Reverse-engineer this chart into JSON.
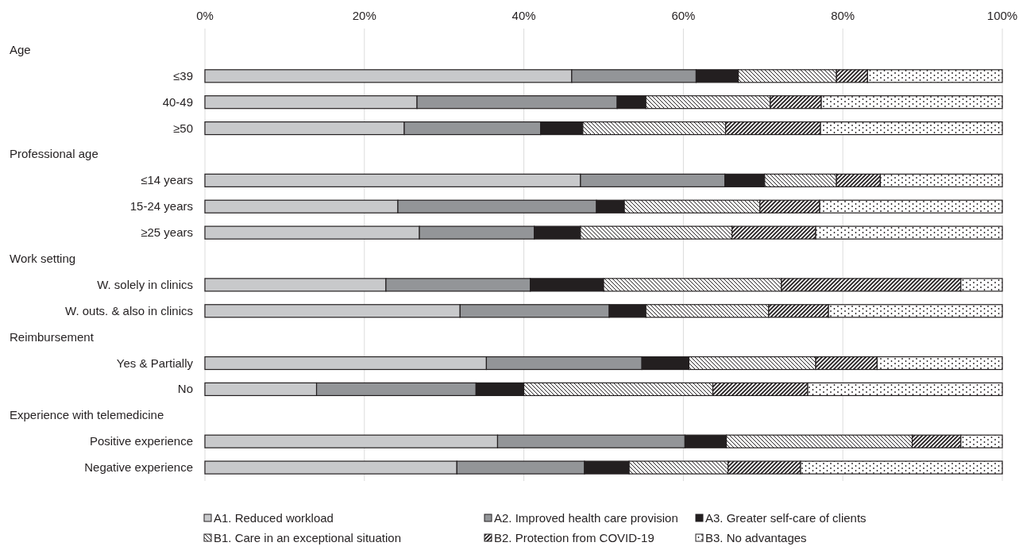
{
  "chart_data": {
    "type": "bar",
    "orientation": "horizontal",
    "stacked": true,
    "categories": [
      null,
      "≤39",
      "40-49",
      "≥50",
      null,
      "≤14 years",
      "15-24 years",
      "≥25 years",
      null,
      "W. solely in clinics",
      "W. outs. & also in clinics",
      null,
      "Yes & Partially",
      "No",
      null,
      "Positive experience",
      "Negative experience"
    ],
    "annotations": [
      "Age",
      "Professional age",
      "Work setting",
      "Reimbursement",
      "Experience with telemedicine"
    ],
    "series": [
      {
        "name": "A1. Reduced workload",
        "color": "#c8c9cb",
        "values": [
          null,
          46.0,
          26.6,
          25.0,
          null,
          47.1,
          24.2,
          26.9,
          null,
          22.7,
          32.0,
          null,
          35.3,
          14.0,
          null,
          36.7,
          31.6
        ]
      },
      {
        "name": "A2. Improved health care provision",
        "color": "#939598",
        "values": [
          null,
          15.6,
          25.1,
          17.1,
          null,
          18.1,
          24.9,
          14.4,
          null,
          18.1,
          18.7,
          null,
          19.5,
          20.0,
          null,
          23.5,
          16.0
        ]
      },
      {
        "name": "A3. Greater self-care of clients",
        "color": "#231f20",
        "values": [
          null,
          5.3,
          3.6,
          5.3,
          null,
          5.0,
          3.5,
          5.8,
          null,
          9.2,
          4.6,
          null,
          5.9,
          6.0,
          null,
          5.2,
          5.6
        ]
      },
      {
        "name": "B1. Care in an exceptional situation",
        "color": "#ffffff",
        "values": [
          null,
          12.3,
          15.6,
          17.9,
          null,
          9.0,
          17.0,
          19.0,
          null,
          22.3,
          15.4,
          null,
          15.9,
          23.7,
          null,
          23.3,
          12.4
        ]
      },
      {
        "name": "B2. Protection from COVID-19",
        "color": "#ffffff",
        "values": [
          null,
          3.9,
          6.4,
          11.9,
          null,
          5.5,
          7.5,
          10.5,
          null,
          22.5,
          7.5,
          null,
          7.7,
          11.9,
          null,
          6.1,
          9.1
        ]
      },
      {
        "name": "B3. No advantages",
        "color": "#ffffff",
        "values": [
          null,
          16.9,
          22.7,
          22.8,
          null,
          15.3,
          22.9,
          23.4,
          null,
          5.2,
          21.8,
          null,
          15.7,
          24.4,
          null,
          5.2,
          25.3
        ]
      }
    ],
    "xlim": [
      0,
      100
    ],
    "xticks": [
      {
        "value": 0,
        "label": "0%"
      },
      {
        "value": 20,
        "label": "20%"
      },
      {
        "value": 40,
        "label": "40%"
      },
      {
        "value": 60,
        "label": "60%"
      },
      {
        "value": 80,
        "label": "80%"
      },
      {
        "value": 100,
        "label": "100%"
      }
    ],
    "grid": "x",
    "legend": "bottom"
  }
}
